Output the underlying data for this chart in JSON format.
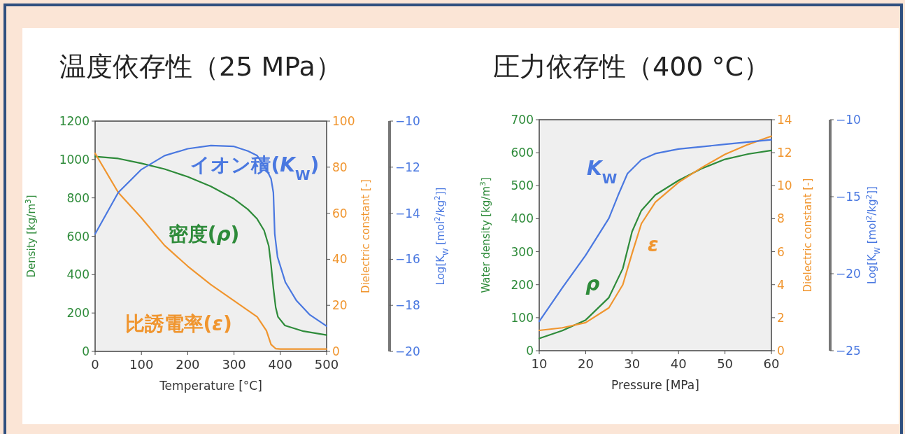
{
  "chart_data": [
    {
      "type": "line",
      "title": "温度依存性（25 MPa）",
      "xlabel": "Temperature [°C]",
      "ylabel": "Density [kg/m$^{3}$]",
      "y2label": "Dielectric constant [-]",
      "y3label": "Log[K$_{W}$ [mol$^{2}$/kg$^{2}$]]",
      "xlim": [
        0,
        500
      ],
      "xticks": [
        0,
        100,
        200,
        300,
        400,
        500
      ],
      "ylim": [
        0,
        1200
      ],
      "yticks": [
        0,
        200,
        400,
        600,
        800,
        1000,
        1200
      ],
      "y2lim": [
        0,
        100
      ],
      "y2ticks": [
        0,
        20,
        40,
        60,
        80,
        100
      ],
      "y3lim": [
        -20,
        -10
      ],
      "y3ticks": [
        -20,
        -18,
        -16,
        -14,
        -12,
        -10
      ],
      "grid": false,
      "series": [
        {
          "name": "密度(*ρ*)",
          "color": "#2e8b3a",
          "axis": "y",
          "x": [
            0,
            50,
            100,
            150,
            200,
            250,
            300,
            330,
            350,
            365,
            375,
            380,
            385,
            390,
            395,
            410,
            450,
            500
          ],
          "values": [
            1015,
            1005,
            980,
            950,
            910,
            860,
            795,
            740,
            690,
            630,
            550,
            450,
            330,
            230,
            180,
            135,
            105,
            85
          ]
        },
        {
          "name": "比誘電率(*ε*)",
          "color": "#f0952e",
          "axis": "y2",
          "x": [
            0,
            50,
            100,
            150,
            200,
            250,
            300,
            350,
            370,
            380,
            390,
            400,
            450,
            500
          ],
          "values": [
            86,
            69,
            58,
            46,
            37,
            29,
            22,
            15,
            9,
            3,
            1.2,
            1,
            1,
            1
          ]
        },
        {
          "name": "イオン積(*K*$_{W}$)",
          "color": "#4a78e0",
          "axis": "y3",
          "x": [
            0,
            50,
            100,
            150,
            200,
            250,
            300,
            330,
            350,
            370,
            380,
            385,
            388,
            394,
            411,
            435,
            463,
            500
          ],
          "values": [
            -14.9,
            -13.1,
            -12.1,
            -11.5,
            -11.2,
            -11.06,
            -11.1,
            -11.3,
            -11.5,
            -12.1,
            -12.5,
            -13.1,
            -14.9,
            -15.9,
            -17,
            -17.8,
            -18.4,
            -18.9
          ]
        }
      ]
    },
    {
      "type": "line",
      "title": "圧力依存性（400 °C）",
      "xlabel": "Pressure [MPa]",
      "ylabel": "Water density [kg/m$^{3}$]",
      "y2label": "Dielectric constant [-]",
      "y3label": "Log[K$_{W}$ [mol$^{2}$/kg$^{2}$]]",
      "xlim": [
        10,
        60
      ],
      "xticks": [
        10,
        20,
        30,
        40,
        50,
        60
      ],
      "ylim": [
        0,
        700
      ],
      "yticks": [
        0,
        100,
        200,
        300,
        400,
        500,
        600,
        700
      ],
      "y2lim": [
        0,
        14
      ],
      "y2ticks": [
        0,
        2,
        4,
        6,
        8,
        10,
        12,
        14
      ],
      "y3lim": [
        -25,
        -10
      ],
      "y3ticks": [
        -25,
        -20,
        -15,
        -10
      ],
      "grid": false,
      "series": [
        {
          "name": "*ρ*",
          "color": "#2e8b3a",
          "axis": "y",
          "x": [
            10,
            15,
            20,
            25,
            28,
            30,
            32,
            35,
            40,
            45,
            50,
            55,
            60
          ],
          "values": [
            37,
            61,
            93,
            161,
            249,
            361,
            425,
            472,
            516,
            552,
            580,
            596,
            607
          ]
        },
        {
          "name": "*ε*",
          "color": "#f0952e",
          "axis": "y2",
          "x": [
            10,
            15,
            20,
            25,
            28,
            30,
            32,
            35,
            40,
            45,
            50,
            55,
            60
          ],
          "values": [
            1.23,
            1.39,
            1.7,
            2.6,
            4,
            5.9,
            7.7,
            9,
            10.2,
            11.1,
            11.9,
            12.5,
            13
          ]
        },
        {
          "name": "*K*$_{W}$",
          "color": "#4a78e0",
          "axis": "y3",
          "x": [
            10,
            15,
            20,
            25,
            27,
            29,
            32,
            35,
            40,
            50,
            60
          ],
          "values": [
            -23.1,
            -20.9,
            -18.8,
            -16.4,
            -14.9,
            -13.5,
            -12.6,
            -12.2,
            -11.9,
            -11.6,
            -11.3
          ]
        }
      ]
    }
  ]
}
